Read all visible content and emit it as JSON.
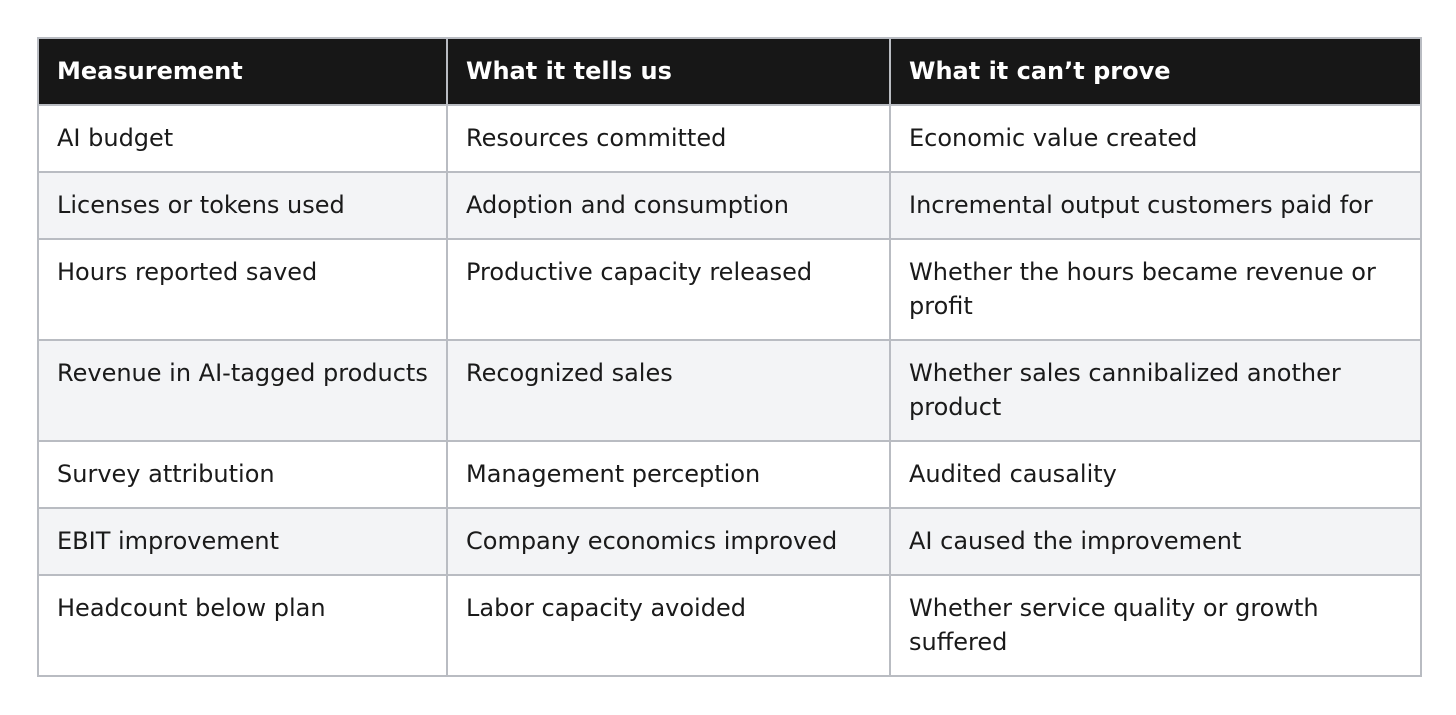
{
  "table": {
    "headers": [
      "Measurement",
      "What it tells us",
      "What it can’t prove"
    ],
    "rows": [
      [
        "AI budget",
        "Resources committed",
        "Economic value created"
      ],
      [
        "Licenses or tokens used",
        "Adoption and consumption",
        "Incremental output customers paid for"
      ],
      [
        "Hours reported saved",
        "Productive capacity released",
        "Whether the hours became revenue or profit"
      ],
      [
        "Revenue in AI-tagged products",
        "Recognized sales",
        "Whether sales cannibalized another product"
      ],
      [
        "Survey attribution",
        "Management perception",
        "Audited causality"
      ],
      [
        "EBIT improvement",
        "Company economics improved",
        "AI caused the improvement"
      ],
      [
        "Headcount below plan",
        "Labor capacity avoided",
        "Whether service quality or growth suffered"
      ]
    ]
  },
  "colors": {
    "header_bg": "#171717",
    "header_text": "#ffffff",
    "row_alt_bg": "#f3f4f6",
    "border": "#b9bcc2"
  }
}
